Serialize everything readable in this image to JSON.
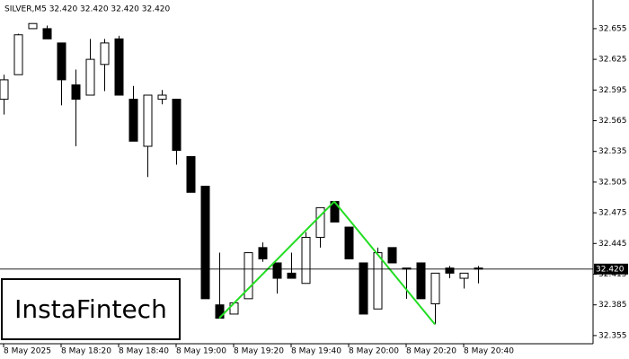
{
  "chart_data": {
    "type": "candlestick",
    "title": "SILVER,M5  32.420 32.420 32.420 32.420",
    "categories": [
      "8 May 2025",
      null,
      null,
      null,
      "8 May 18:20",
      null,
      null,
      null,
      "8 May 18:40",
      null,
      null,
      null,
      "8 May 19:00",
      null,
      null,
      null,
      "8 May 19:20",
      null,
      null,
      null,
      "8 May 19:40",
      null,
      null,
      null,
      "8 May 20:00",
      null,
      null,
      null,
      "8 May 20:20",
      null,
      null,
      null,
      "8 May 20:40",
      null
    ],
    "open": [
      32.586,
      32.61,
      32.655,
      32.655,
      32.641,
      32.6,
      32.59,
      32.62,
      32.645,
      32.586,
      32.54,
      32.586,
      32.586,
      32.53,
      32.501,
      32.385,
      32.376,
      32.391,
      32.441,
      32.426,
      32.416,
      32.406,
      32.451,
      32.486,
      32.461,
      32.426,
      32.381,
      32.441,
      32.421,
      32.426,
      32.386,
      32.421,
      32.411,
      32.421
    ],
    "high": [
      32.61,
      32.65,
      32.66,
      32.658,
      32.641,
      32.615,
      32.645,
      32.645,
      32.648,
      32.599,
      32.59,
      32.595,
      32.586,
      32.53,
      32.501,
      32.436,
      32.387,
      32.436,
      32.446,
      32.426,
      32.436,
      32.456,
      32.48,
      32.486,
      32.461,
      32.426,
      32.441,
      32.441,
      32.421,
      32.426,
      32.416,
      32.423,
      32.416,
      32.423
    ],
    "low": [
      32.571,
      32.61,
      32.655,
      32.645,
      32.58,
      32.54,
      32.59,
      32.594,
      32.59,
      32.545,
      32.51,
      32.581,
      32.522,
      32.495,
      32.391,
      32.372,
      32.376,
      32.391,
      32.427,
      32.396,
      32.411,
      32.406,
      32.441,
      32.466,
      32.43,
      32.376,
      32.381,
      32.426,
      32.391,
      32.391,
      32.366,
      32.411,
      32.401,
      32.406
    ],
    "close": [
      32.605,
      32.649,
      32.66,
      32.645,
      32.605,
      32.586,
      32.625,
      32.641,
      32.59,
      32.545,
      32.59,
      32.59,
      32.536,
      32.495,
      32.391,
      32.372,
      32.387,
      32.436,
      32.43,
      32.411,
      32.411,
      32.451,
      32.48,
      32.466,
      32.43,
      32.376,
      32.436,
      32.426,
      32.42,
      32.391,
      32.416,
      32.416,
      32.416,
      32.42
    ],
    "ylim": [
      32.347,
      32.683
    ],
    "yticks": [
      32.355,
      32.385,
      32.415,
      32.445,
      32.475,
      32.505,
      32.535,
      32.565,
      32.595,
      32.625,
      32.655
    ],
    "current_price": {
      "value": 32.42,
      "label": "32.420"
    },
    "pattern": {
      "color": "#22dd22",
      "points": [
        {
          "x": 15,
          "value": 32.372
        },
        {
          "x": 23,
          "value": 32.486
        },
        {
          "x": 30,
          "value": 32.366
        }
      ]
    }
  },
  "watermark": "InstaFintech"
}
